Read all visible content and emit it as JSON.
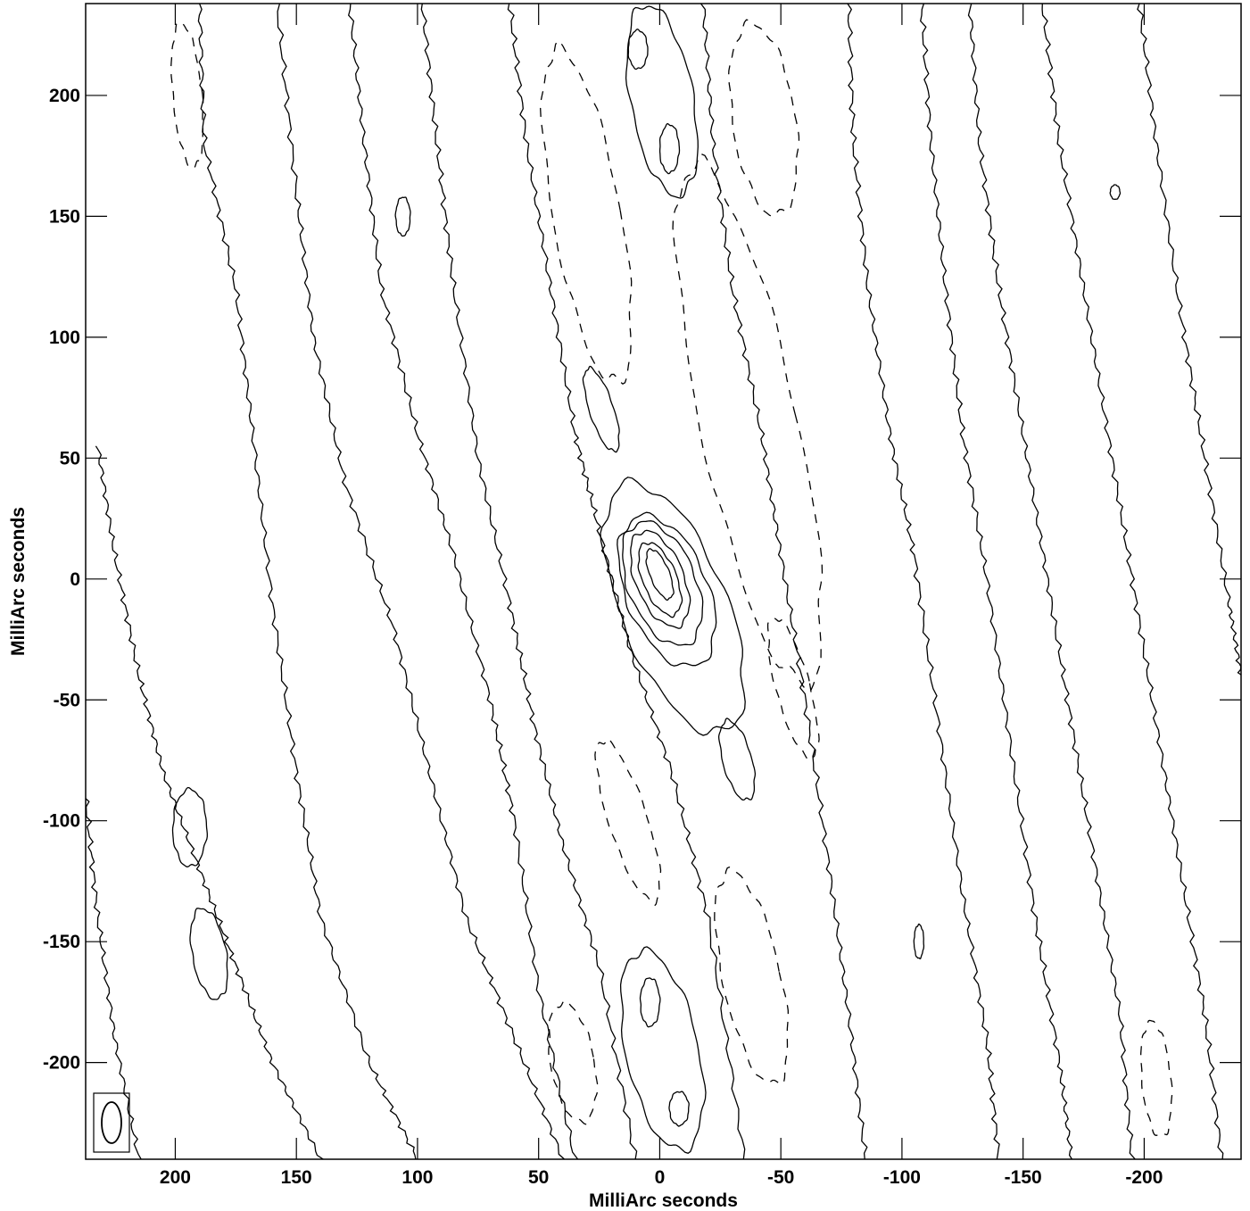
{
  "chart_data": {
    "type": "contour",
    "xlabel": "MilliArc seconds",
    "ylabel": "MilliArc seconds",
    "xlim": [
      237,
      -240
    ],
    "ylim": [
      -240,
      238
    ],
    "x_ticks": [
      200,
      150,
      100,
      50,
      0,
      -50,
      -100,
      -150,
      -200
    ],
    "x_tick_labels": [
      "200",
      "150",
      "100",
      "50",
      "0",
      "-50",
      "-100",
      "-150",
      "-200"
    ],
    "y_ticks": [
      200,
      150,
      100,
      50,
      0,
      -50,
      -100,
      -150,
      -200
    ],
    "y_tick_labels": [
      "200",
      "150",
      "100",
      "50",
      "0",
      "-50",
      "-100",
      "-150",
      "-200"
    ],
    "grid": false,
    "peak": {
      "x": 0,
      "y": 0
    },
    "beam": {
      "position": "bottom-left",
      "shape": "ellipse",
      "orientation": "north-south"
    },
    "contours": {
      "solid_positive": [
        {
          "center": [
            0,
            2
          ],
          "rx": 4,
          "ry": 11,
          "tilt_deg": -22
        },
        {
          "center": [
            0,
            0
          ],
          "rx": 7,
          "ry": 16,
          "tilt_deg": -22
        },
        {
          "center": [
            0,
            0
          ],
          "rx": 10,
          "ry": 21,
          "tilt_deg": -22
        },
        {
          "center": [
            -1,
            -2
          ],
          "rx": 14,
          "ry": 27,
          "tilt_deg": -22
        },
        {
          "center": [
            -3,
            -5
          ],
          "rx": 17,
          "ry": 33,
          "tilt_deg": -22
        },
        {
          "center": [
            -6,
            -12
          ],
          "rx": 22,
          "ry": 55,
          "tilt_deg": -22
        },
        {
          "center": [
            9,
            219
          ],
          "rx": 4,
          "ry": 8,
          "tilt_deg": 0
        },
        {
          "center": [
            -4,
            178
          ],
          "rx": 4,
          "ry": 10,
          "tilt_deg": 0
        },
        {
          "center": [
            -1,
            198
          ],
          "rx": 13,
          "ry": 40,
          "tilt_deg": -10
        },
        {
          "center": [
            106,
            150
          ],
          "rx": 3,
          "ry": 8,
          "tilt_deg": 0
        },
        {
          "center": [
            24,
            70
          ],
          "rx": 5,
          "ry": 18,
          "tilt_deg": -18
        },
        {
          "center": [
            -32,
            -75
          ],
          "rx": 6,
          "ry": 17,
          "tilt_deg": -15
        },
        {
          "center": [
            194,
            -103
          ],
          "rx": 7,
          "ry": 16,
          "tilt_deg": 0
        },
        {
          "center": [
            186,
            -155
          ],
          "rx": 7,
          "ry": 19,
          "tilt_deg": -10
        },
        {
          "center": [
            4,
            -175
          ],
          "rx": 4,
          "ry": 10,
          "tilt_deg": 0
        },
        {
          "center": [
            -8,
            -219
          ],
          "rx": 4,
          "ry": 7,
          "tilt_deg": 0
        },
        {
          "center": [
            -1,
            -195
          ],
          "rx": 15,
          "ry": 42,
          "tilt_deg": -12
        },
        {
          "center": [
            -107,
            -150
          ],
          "rx": 2,
          "ry": 7,
          "tilt_deg": 0
        },
        {
          "center": [
            -188,
            160
          ],
          "rx": 2,
          "ry": 3,
          "tilt_deg": 0
        }
      ],
      "dashed_negative": [
        {
          "center": [
            -37,
            64
          ],
          "rx": 20,
          "ry": 110,
          "tilt_deg": -12
        },
        {
          "center": [
            30,
            150
          ],
          "rx": 14,
          "ry": 70,
          "tilt_deg": -10
        },
        {
          "center": [
            -43,
            190
          ],
          "rx": 13,
          "ry": 40,
          "tilt_deg": -8
        },
        {
          "center": [
            195,
            200
          ],
          "rx": 6,
          "ry": 30,
          "tilt_deg": -5
        },
        {
          "center": [
            -55,
            -45
          ],
          "rx": 7,
          "ry": 30,
          "tilt_deg": -15
        },
        {
          "center": [
            13,
            -100
          ],
          "rx": 8,
          "ry": 35,
          "tilt_deg": -18
        },
        {
          "center": [
            36,
            -200
          ],
          "rx": 9,
          "ry": 25,
          "tilt_deg": -10
        },
        {
          "center": [
            -38,
            -165
          ],
          "rx": 12,
          "ry": 45,
          "tilt_deg": -12
        },
        {
          "center": [
            -205,
            -207
          ],
          "rx": 6,
          "ry": 24,
          "tilt_deg": -5
        }
      ],
      "solid_ridges": [
        [
          [
            190,
            238
          ],
          [
            188,
            180
          ],
          [
            175,
            120
          ],
          [
            168,
            60
          ],
          [
            160,
            -10
          ],
          [
            150,
            -80
          ],
          [
            140,
            -140
          ],
          [
            120,
            -200
          ],
          [
            100,
            -240
          ]
        ],
        [
          [
            158,
            238
          ],
          [
            150,
            160
          ],
          [
            143,
            100
          ],
          [
            130,
            40
          ],
          [
            110,
            -20
          ],
          [
            95,
            -80
          ],
          [
            80,
            -140
          ],
          [
            60,
            -190
          ],
          [
            40,
            -240
          ]
        ],
        [
          [
            128,
            238
          ],
          [
            122,
            180
          ],
          [
            115,
            120
          ],
          [
            100,
            60
          ],
          [
            85,
            10
          ],
          [
            70,
            -50
          ],
          [
            60,
            -100
          ],
          [
            50,
            -170
          ],
          [
            35,
            -240
          ]
        ],
        [
          [
            98,
            238
          ],
          [
            92,
            180
          ],
          [
            85,
            120
          ],
          [
            75,
            50
          ],
          [
            62,
            -10
          ],
          [
            52,
            -60
          ],
          [
            40,
            -110
          ],
          [
            25,
            -160
          ],
          [
            10,
            -240
          ]
        ],
        [
          [
            62,
            238
          ],
          [
            55,
            180
          ],
          [
            45,
            120
          ],
          [
            35,
            60
          ],
          [
            25,
            20
          ],
          [
            12,
            -30
          ],
          [
            -5,
            -80
          ],
          [
            -20,
            -140
          ],
          [
            -35,
            -240
          ]
        ],
        [
          [
            -18,
            238
          ],
          [
            -22,
            180
          ],
          [
            -30,
            120
          ],
          [
            -42,
            60
          ],
          [
            -50,
            10
          ],
          [
            -60,
            -50
          ],
          [
            -70,
            -120
          ],
          [
            -78,
            -180
          ],
          [
            -85,
            -240
          ]
        ],
        [
          [
            -78,
            238
          ],
          [
            -80,
            180
          ],
          [
            -86,
            120
          ],
          [
            -95,
            60
          ],
          [
            -105,
            10
          ],
          [
            -115,
            -60
          ],
          [
            -125,
            -130
          ],
          [
            -135,
            -190
          ],
          [
            -140,
            -240
          ]
        ],
        [
          [
            -108,
            238
          ],
          [
            -112,
            180
          ],
          [
            -118,
            120
          ],
          [
            -125,
            60
          ],
          [
            -135,
            0
          ],
          [
            -145,
            -70
          ],
          [
            -155,
            -140
          ],
          [
            -165,
            -200
          ],
          [
            -170,
            -240
          ]
        ],
        [
          [
            -128,
            238
          ],
          [
            -132,
            180
          ],
          [
            -140,
            120
          ],
          [
            -150,
            60
          ],
          [
            -160,
            0
          ],
          [
            -170,
            -60
          ],
          [
            -180,
            -120
          ],
          [
            -190,
            -180
          ],
          [
            -195,
            -240
          ]
        ],
        [
          [
            -158,
            238
          ],
          [
            -165,
            180
          ],
          [
            -175,
            120
          ],
          [
            -185,
            60
          ],
          [
            -195,
            0
          ],
          [
            -205,
            -60
          ],
          [
            -215,
            -120
          ],
          [
            -225,
            -180
          ],
          [
            -232,
            -240
          ]
        ],
        [
          [
            -198,
            238
          ],
          [
            -205,
            180
          ],
          [
            -215,
            110
          ],
          [
            -225,
            50
          ],
          [
            -235,
            -10
          ],
          [
            -240,
            -40
          ]
        ],
        [
          [
            232,
            55
          ],
          [
            225,
            10
          ],
          [
            215,
            -40
          ],
          [
            205,
            -80
          ],
          [
            190,
            -120
          ],
          [
            175,
            -160
          ],
          [
            160,
            -200
          ],
          [
            140,
            -240
          ]
        ],
        [
          [
            237,
            -90
          ],
          [
            232,
            -140
          ],
          [
            225,
            -190
          ],
          [
            215,
            -240
          ]
        ]
      ]
    }
  }
}
